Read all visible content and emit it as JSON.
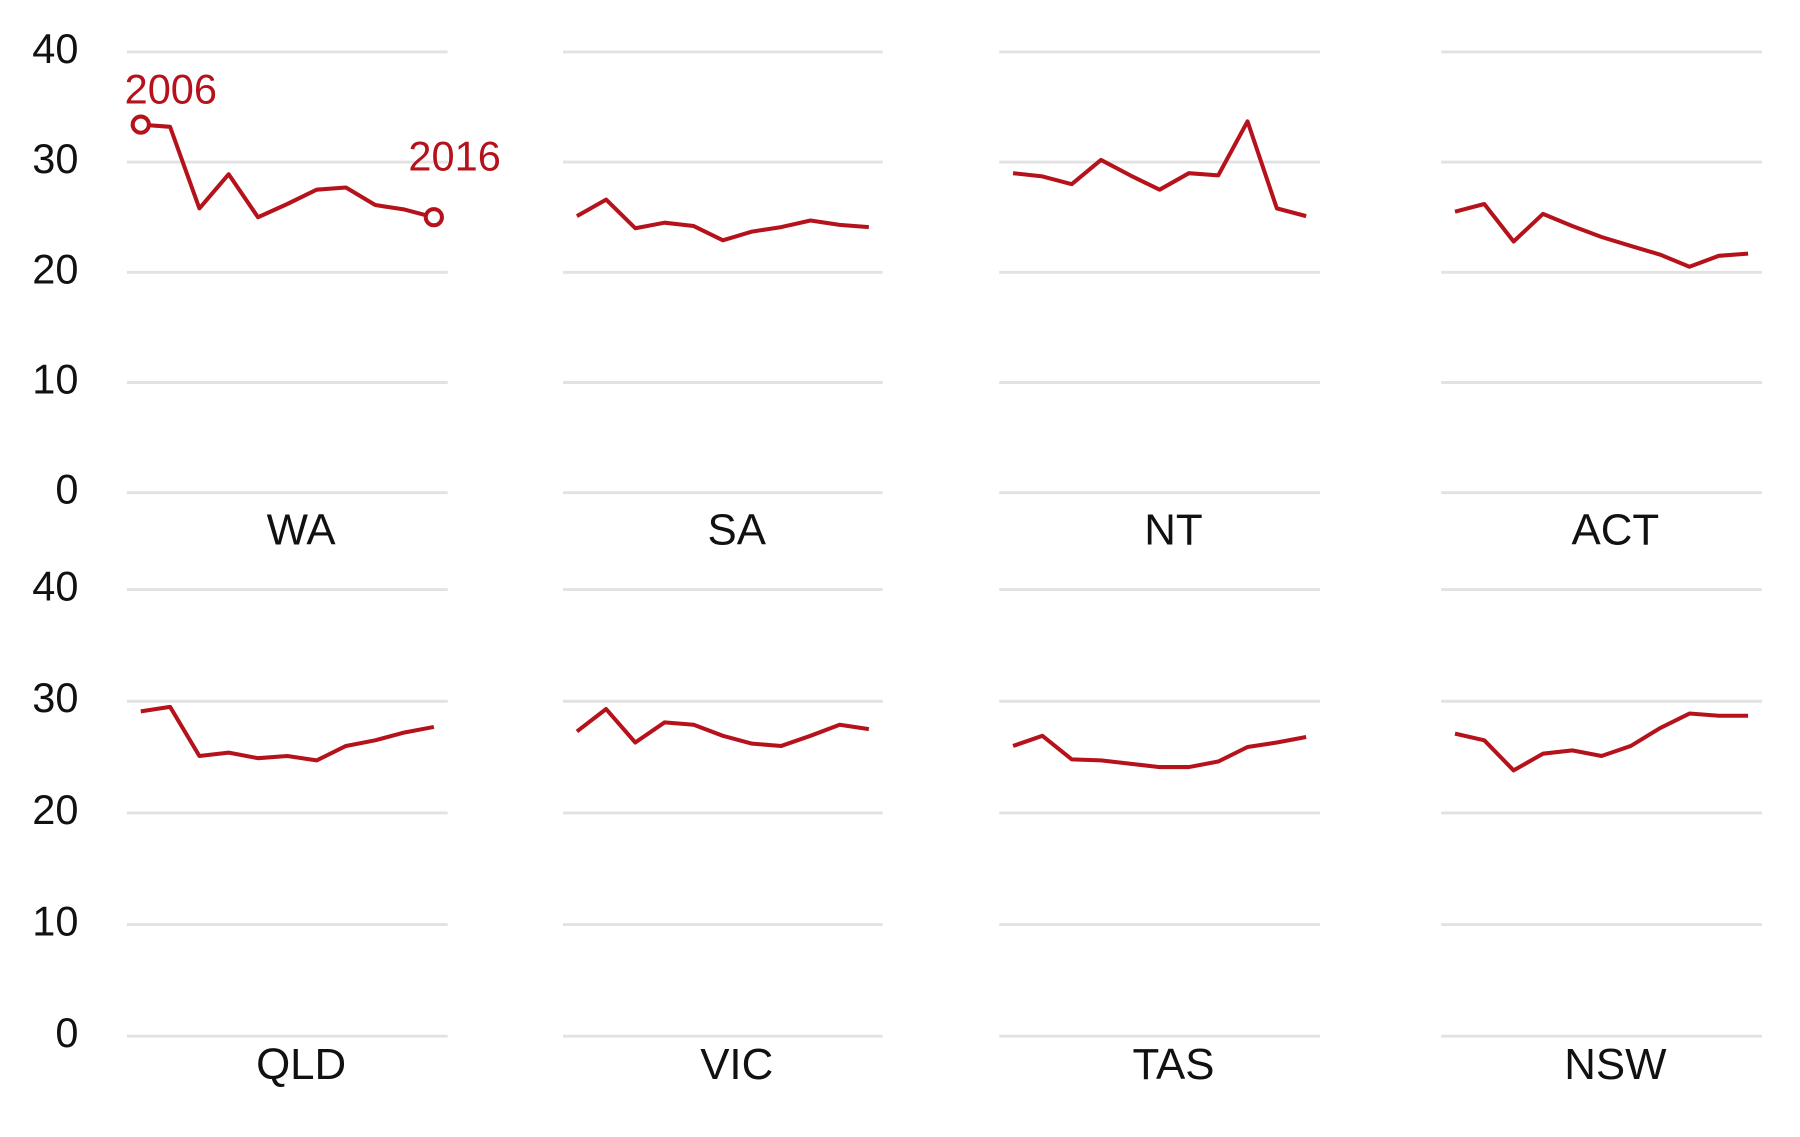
{
  "chart_data": [
    {
      "type": "line",
      "title": "WA",
      "categories": [
        "2006",
        null,
        null,
        null,
        null,
        null,
        null,
        null,
        null,
        null,
        "2016"
      ],
      "values": [
        33.4,
        33.2,
        25.8,
        28.9,
        25.0,
        26.2,
        27.5,
        27.7,
        26.1,
        25.7,
        25.0
      ],
      "color": "#b5121b",
      "ylim": [
        0,
        40
      ],
      "yticks": [
        0,
        10,
        20,
        30,
        40
      ],
      "grid": true
    },
    {
      "type": "line",
      "title": "SA",
      "values": [
        25.1,
        26.6,
        24.0,
        24.5,
        24.2,
        22.9,
        23.7,
        24.1,
        24.7,
        24.3,
        24.1
      ],
      "color": "#b5121b",
      "ylim": [
        0,
        40
      ],
      "yticks": [
        0,
        10,
        20,
        30,
        40
      ],
      "grid": true
    },
    {
      "type": "line",
      "title": "NT",
      "values": [
        29.0,
        28.7,
        28.0,
        30.2,
        28.8,
        27.5,
        29.0,
        28.8,
        33.7,
        25.8,
        25.1
      ],
      "color": "#b5121b",
      "ylim": [
        0,
        40
      ],
      "yticks": [
        0,
        10,
        20,
        30,
        40
      ],
      "grid": true
    },
    {
      "type": "line",
      "title": "ACT",
      "values": [
        25.5,
        26.2,
        22.8,
        25.3,
        24.2,
        23.2,
        22.4,
        21.6,
        20.5,
        21.5,
        21.7
      ],
      "color": "#b5121b",
      "ylim": [
        0,
        40
      ],
      "yticks": [
        0,
        10,
        20,
        30,
        40
      ],
      "grid": true
    },
    {
      "type": "line",
      "title": "QLD",
      "values": [
        29.1,
        29.5,
        25.1,
        25.4,
        24.9,
        25.1,
        24.7,
        26.0,
        26.5,
        27.2,
        27.7
      ],
      "color": "#b5121b",
      "ylim": [
        0,
        40
      ],
      "yticks": [
        0,
        10,
        20,
        30,
        40
      ],
      "grid": true
    },
    {
      "type": "line",
      "title": "VIC",
      "values": [
        27.3,
        29.3,
        26.3,
        28.1,
        27.9,
        26.9,
        26.2,
        26.0,
        26.9,
        27.9,
        27.5
      ],
      "color": "#b5121b",
      "ylim": [
        0,
        40
      ],
      "yticks": [
        0,
        10,
        20,
        30,
        40
      ],
      "grid": true
    },
    {
      "type": "line",
      "title": "TAS",
      "values": [
        26.0,
        26.9,
        24.8,
        24.7,
        24.4,
        24.1,
        24.1,
        24.6,
        25.9,
        26.3,
        26.8
      ],
      "color": "#b5121b",
      "ylim": [
        0,
        40
      ],
      "yticks": [
        0,
        10,
        20,
        30,
        40
      ],
      "grid": true
    },
    {
      "type": "line",
      "title": "NSW",
      "values": [
        27.1,
        26.5,
        23.8,
        25.3,
        25.6,
        25.1,
        26.0,
        27.6,
        28.9,
        28.7,
        28.7
      ],
      "color": "#b5121b",
      "ylim": [
        0,
        40
      ],
      "yticks": [
        0,
        10,
        20,
        30,
        40
      ],
      "grid": true
    }
  ]
}
